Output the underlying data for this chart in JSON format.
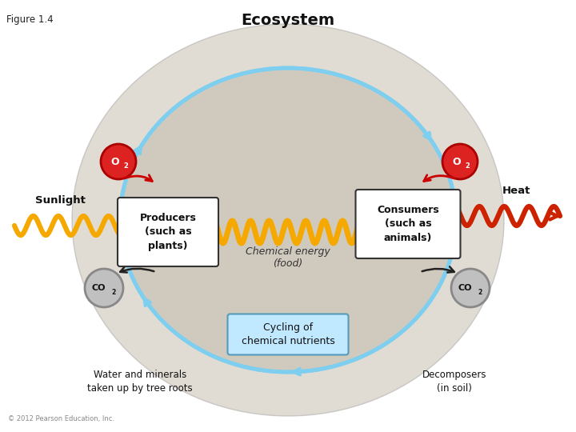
{
  "title": "Ecosystem",
  "figure_label": "Figure 1.4",
  "background_color": "#ffffff",
  "ellipse_color": "#7ecfef",
  "labels": {
    "producers": "Producers\n(such as\nplants)",
    "consumers": "Consumers\n(such as\nanimals)",
    "chemical_energy": "Chemical energy\n(food)",
    "cycling": "Cycling of\nchemical nutrients",
    "water_minerals": "Water and minerals\ntaken up by tree roots",
    "decomposers": "Decomposers\n(in soil)",
    "sunlight": "Sunlight",
    "heat": "Heat",
    "copyright": "© 2012 Pearson Education, Inc."
  },
  "colors": {
    "wavy_orange": "#f5a800",
    "wavy_red": "#cc2200",
    "ellipse_blue": "#7ecfef",
    "o2_red": "#dd2222",
    "co2_gray": "#aaaaaa",
    "cycling_box": "#c0e8ff",
    "white_box": "#ffffff",
    "dark_text": "#111111",
    "black_arrow": "#222222"
  }
}
